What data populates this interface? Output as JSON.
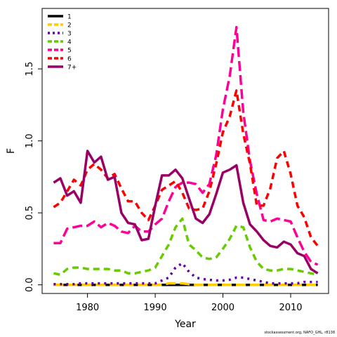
{
  "credit": "stockassessment.org, NAFO_GHL, r8138",
  "chart_data": {
    "type": "line",
    "title": "",
    "xlabel": "Year",
    "ylabel": "F",
    "xlim": [
      1973.3,
      2015.6
    ],
    "ylim": [
      -0.06,
      1.92
    ],
    "xticks": [
      1980,
      1990,
      2000,
      2010
    ],
    "yticks": [
      0.0,
      0.5,
      1.0,
      1.5
    ],
    "ytick_labels": [
      "0.0",
      "0.5",
      "1.0",
      "1.5"
    ],
    "grid": false,
    "legend_position": "top-left",
    "x": [
      1975,
      1976,
      1977,
      1978,
      1979,
      1980,
      1981,
      1982,
      1983,
      1984,
      1985,
      1986,
      1987,
      1988,
      1989,
      1990,
      1991,
      1992,
      1993,
      1994,
      1995,
      1996,
      1997,
      1998,
      1999,
      2000,
      2001,
      2002,
      2003,
      2004,
      2005,
      2006,
      2007,
      2008,
      2009,
      2010,
      2011,
      2012,
      2013,
      2014
    ],
    "series": [
      {
        "name": "1",
        "color": "#000000",
        "dash": "solid",
        "values": [
          0.0,
          0.0,
          0.0,
          0.0,
          0.0,
          0.0,
          0.0,
          0.0,
          0.0,
          0.0,
          0.0,
          0.0,
          0.0,
          0.0,
          0.0,
          0.0,
          0.0,
          0.0,
          0.0,
          0.0,
          0.0,
          0.0,
          0.0,
          0.0,
          0.0,
          0.0,
          0.0,
          0.0,
          0.0,
          0.0,
          0.0,
          0.0,
          0.0,
          0.0,
          0.0,
          0.0,
          0.0,
          0.0,
          0.0,
          0.0
        ]
      },
      {
        "name": "2",
        "color": "#ffcc00",
        "dash": "long",
        "values": [
          0.0,
          0.0,
          0.0,
          0.0,
          0.0,
          0.0,
          0.0,
          0.0,
          0.0,
          0.0,
          0.0,
          0.0,
          0.0,
          0.0,
          0.0,
          0.0,
          0.0,
          0.01,
          0.01,
          0.01,
          0.005,
          0.0,
          0.0,
          0.0,
          0.0,
          0.0,
          0.0,
          0.0,
          0.0,
          0.0,
          0.0,
          0.0,
          0.0,
          0.0,
          0.0,
          0.0,
          0.0,
          0.0,
          0.0,
          0.0
        ]
      },
      {
        "name": "3",
        "color": "#6600aa",
        "dash": "dot",
        "values": [
          0.005,
          0.005,
          0.005,
          0.005,
          0.01,
          0.01,
          0.01,
          0.01,
          0.01,
          0.01,
          0.01,
          0.01,
          0.01,
          0.01,
          0.01,
          0.01,
          0.03,
          0.05,
          0.12,
          0.15,
          0.09,
          0.05,
          0.04,
          0.035,
          0.03,
          0.03,
          0.035,
          0.05,
          0.05,
          0.04,
          0.03,
          0.02,
          0.01,
          0.01,
          0.01,
          0.01,
          0.01,
          0.02,
          0.02,
          0.02
        ]
      },
      {
        "name": "4",
        "color": "#66cc00",
        "dash": "dash",
        "values": [
          0.08,
          0.07,
          0.11,
          0.12,
          0.12,
          0.11,
          0.11,
          0.11,
          0.11,
          0.1,
          0.1,
          0.08,
          0.08,
          0.09,
          0.1,
          0.12,
          0.2,
          0.28,
          0.4,
          0.46,
          0.28,
          0.24,
          0.19,
          0.18,
          0.19,
          0.25,
          0.32,
          0.41,
          0.4,
          0.26,
          0.16,
          0.11,
          0.1,
          0.1,
          0.11,
          0.11,
          0.1,
          0.09,
          0.08,
          0.07
        ]
      },
      {
        "name": "5",
        "color": "#ff0099",
        "dash": "long",
        "values": [
          0.29,
          0.29,
          0.39,
          0.4,
          0.41,
          0.41,
          0.44,
          0.4,
          0.43,
          0.41,
          0.37,
          0.36,
          0.41,
          0.37,
          0.37,
          0.42,
          0.46,
          0.58,
          0.68,
          0.71,
          0.71,
          0.7,
          0.64,
          0.7,
          0.9,
          1.22,
          1.45,
          1.79,
          1.2,
          0.86,
          0.63,
          0.45,
          0.44,
          0.46,
          0.45,
          0.44,
          0.33,
          0.23,
          0.16,
          0.14
        ]
      },
      {
        "name": "6",
        "color": "#ff0000",
        "dash": "dash",
        "values": [
          0.54,
          0.57,
          0.65,
          0.73,
          0.69,
          0.8,
          0.84,
          0.8,
          0.74,
          0.77,
          0.67,
          0.58,
          0.58,
          0.5,
          0.45,
          0.55,
          0.66,
          0.69,
          0.72,
          0.64,
          0.53,
          0.52,
          0.53,
          0.65,
          0.84,
          1.06,
          1.17,
          1.35,
          1.05,
          0.84,
          0.55,
          0.55,
          0.67,
          0.88,
          0.93,
          0.77,
          0.55,
          0.47,
          0.33,
          0.27
        ]
      },
      {
        "name": "7+",
        "color": "#990066",
        "dash": "solid",
        "values": [
          0.71,
          0.74,
          0.62,
          0.65,
          0.57,
          0.93,
          0.85,
          0.89,
          0.73,
          0.75,
          0.5,
          0.43,
          0.42,
          0.31,
          0.32,
          0.55,
          0.76,
          0.76,
          0.8,
          0.74,
          0.6,
          0.46,
          0.43,
          0.49,
          0.63,
          0.78,
          0.8,
          0.83,
          0.57,
          0.42,
          0.37,
          0.31,
          0.27,
          0.26,
          0.3,
          0.28,
          0.22,
          0.2,
          0.11,
          0.08
        ]
      }
    ]
  }
}
